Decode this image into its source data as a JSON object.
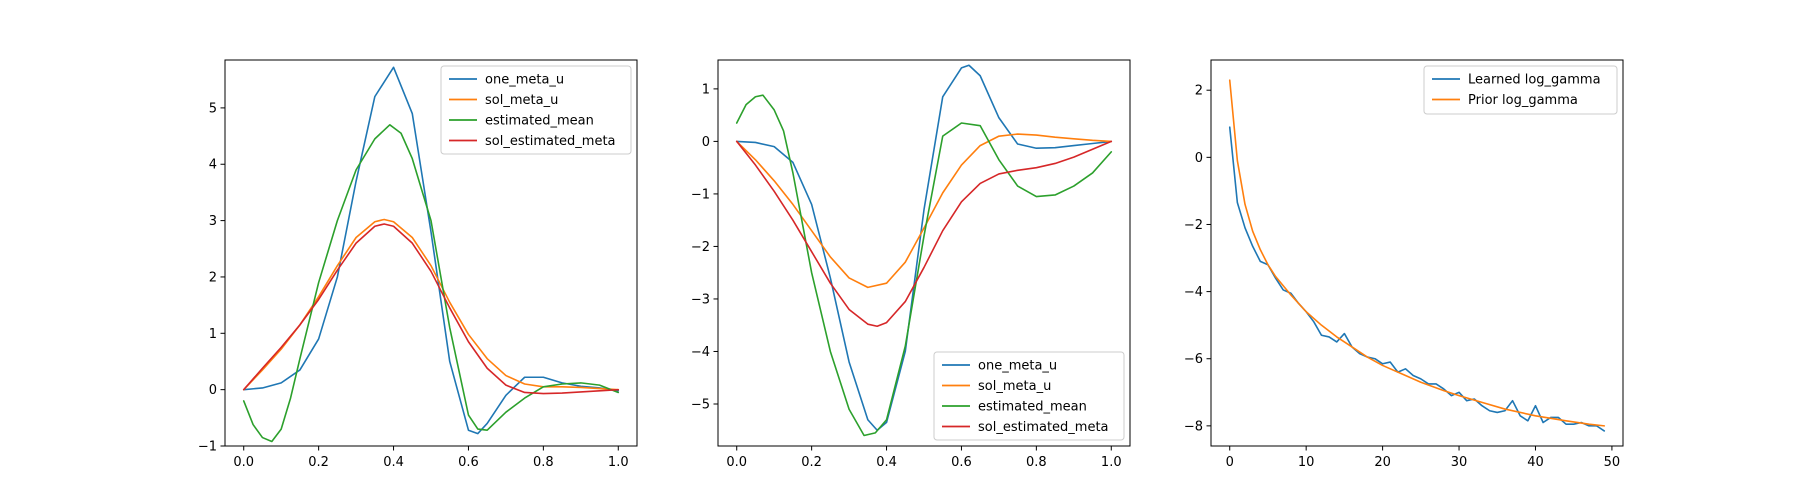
{
  "colors": {
    "blue": "#1f77b4",
    "orange": "#ff7f0e",
    "green": "#2ca02c",
    "red": "#d62728"
  },
  "chart_data": [
    {
      "type": "line",
      "title": "",
      "xlabel": "",
      "ylabel": "",
      "xlim": [
        -0.05,
        1.05
      ],
      "ylim": [
        -1.0,
        5.85
      ],
      "xticks": [
        0.0,
        0.2,
        0.4,
        0.6,
        0.8,
        1.0
      ],
      "xtick_labels": [
        "0.0",
        "0.2",
        "0.4",
        "0.6",
        "0.8",
        "1.0"
      ],
      "yticks": [
        -1,
        0,
        1,
        2,
        3,
        4,
        5
      ],
      "ytick_labels": [
        "−1",
        "0",
        "1",
        "2",
        "3",
        "4",
        "5"
      ],
      "grid": false,
      "legend": "top-right",
      "series": [
        {
          "name": "one_meta_u",
          "color": "#1f77b4",
          "x": [
            0,
            0.05,
            0.1,
            0.15,
            0.2,
            0.25,
            0.3,
            0.35,
            0.4,
            0.45,
            0.5,
            0.55,
            0.6,
            0.625,
            0.65,
            0.7,
            0.75,
            0.8,
            0.85,
            0.9,
            0.95,
            1.0
          ],
          "y": [
            0,
            0.03,
            0.12,
            0.35,
            0.9,
            2.0,
            3.7,
            5.2,
            5.72,
            4.9,
            2.8,
            0.5,
            -0.72,
            -0.78,
            -0.6,
            -0.1,
            0.22,
            0.22,
            0.12,
            0.06,
            0.03,
            -0.02
          ]
        },
        {
          "name": "sol_meta_u",
          "color": "#ff7f0e",
          "x": [
            0,
            0.05,
            0.1,
            0.15,
            0.2,
            0.25,
            0.3,
            0.35,
            0.375,
            0.4,
            0.45,
            0.5,
            0.55,
            0.6,
            0.65,
            0.7,
            0.75,
            0.8,
            0.85,
            0.9,
            0.95,
            1.0
          ],
          "y": [
            0,
            0.35,
            0.72,
            1.15,
            1.65,
            2.2,
            2.7,
            2.98,
            3.02,
            2.98,
            2.7,
            2.2,
            1.55,
            0.98,
            0.55,
            0.25,
            0.1,
            0.05,
            0.05,
            0.04,
            0.02,
            0
          ]
        },
        {
          "name": "estimated_mean",
          "color": "#2ca02c",
          "x": [
            0,
            0.025,
            0.05,
            0.075,
            0.1,
            0.125,
            0.15,
            0.2,
            0.25,
            0.3,
            0.35,
            0.39,
            0.42,
            0.45,
            0.5,
            0.55,
            0.6,
            0.625,
            0.65,
            0.7,
            0.75,
            0.8,
            0.85,
            0.9,
            0.95,
            1.0
          ],
          "y": [
            -0.2,
            -0.62,
            -0.85,
            -0.92,
            -0.7,
            -0.15,
            0.55,
            1.9,
            3.0,
            3.9,
            4.45,
            4.7,
            4.55,
            4.1,
            3.0,
            1.1,
            -0.45,
            -0.7,
            -0.72,
            -0.4,
            -0.15,
            0.05,
            0.1,
            0.12,
            0.08,
            -0.05
          ]
        },
        {
          "name": "sol_estimated_meta",
          "color": "#d62728",
          "x": [
            0,
            0.05,
            0.1,
            0.15,
            0.2,
            0.25,
            0.3,
            0.35,
            0.375,
            0.4,
            0.45,
            0.5,
            0.55,
            0.6,
            0.65,
            0.7,
            0.75,
            0.8,
            0.85,
            0.9,
            0.95,
            1.0
          ],
          "y": [
            0,
            0.38,
            0.75,
            1.15,
            1.6,
            2.12,
            2.6,
            2.9,
            2.94,
            2.9,
            2.6,
            2.1,
            1.45,
            0.85,
            0.38,
            0.08,
            -0.05,
            -0.07,
            -0.06,
            -0.04,
            -0.02,
            0
          ]
        }
      ]
    },
    {
      "type": "line",
      "title": "",
      "xlabel": "",
      "ylabel": "",
      "xlim": [
        -0.05,
        1.05
      ],
      "ylim": [
        -5.8,
        1.55
      ],
      "xticks": [
        0.0,
        0.2,
        0.4,
        0.6,
        0.8,
        1.0
      ],
      "xtick_labels": [
        "0.0",
        "0.2",
        "0.4",
        "0.6",
        "0.8",
        "1.0"
      ],
      "yticks": [
        -5,
        -4,
        -3,
        -2,
        -1,
        0,
        1
      ],
      "ytick_labels": [
        "−5",
        "−4",
        "−3",
        "−2",
        "−1",
        "0",
        "1"
      ],
      "grid": false,
      "legend": "bottom-right",
      "series": [
        {
          "name": "one_meta_u",
          "color": "#1f77b4",
          "x": [
            0,
            0.05,
            0.1,
            0.15,
            0.2,
            0.25,
            0.3,
            0.35,
            0.375,
            0.4,
            0.45,
            0.5,
            0.55,
            0.6,
            0.62,
            0.65,
            0.7,
            0.75,
            0.8,
            0.85,
            0.9,
            0.95,
            1.0
          ],
          "y": [
            0,
            -0.02,
            -0.1,
            -0.4,
            -1.2,
            -2.6,
            -4.2,
            -5.3,
            -5.5,
            -5.35,
            -4.0,
            -1.3,
            0.85,
            1.4,
            1.45,
            1.25,
            0.45,
            -0.05,
            -0.13,
            -0.12,
            -0.08,
            -0.04,
            0
          ]
        },
        {
          "name": "sol_meta_u",
          "color": "#ff7f0e",
          "x": [
            0,
            0.05,
            0.1,
            0.15,
            0.2,
            0.25,
            0.3,
            0.35,
            0.4,
            0.45,
            0.5,
            0.55,
            0.6,
            0.65,
            0.7,
            0.75,
            0.8,
            0.85,
            0.9,
            0.95,
            1.0
          ],
          "y": [
            0,
            -0.35,
            -0.75,
            -1.2,
            -1.7,
            -2.2,
            -2.6,
            -2.78,
            -2.7,
            -2.3,
            -1.65,
            -0.98,
            -0.45,
            -0.08,
            0.1,
            0.14,
            0.12,
            0.08,
            0.05,
            0.02,
            0
          ]
        },
        {
          "name": "estimated_mean",
          "color": "#2ca02c",
          "x": [
            0,
            0.025,
            0.05,
            0.07,
            0.1,
            0.125,
            0.15,
            0.2,
            0.25,
            0.3,
            0.34,
            0.37,
            0.4,
            0.45,
            0.5,
            0.55,
            0.6,
            0.65,
            0.7,
            0.75,
            0.8,
            0.85,
            0.9,
            0.95,
            1.0
          ],
          "y": [
            0.35,
            0.7,
            0.85,
            0.88,
            0.6,
            0.2,
            -0.6,
            -2.5,
            -4.0,
            -5.1,
            -5.6,
            -5.55,
            -5.3,
            -3.9,
            -1.8,
            0.1,
            0.35,
            0.3,
            -0.35,
            -0.85,
            -1.05,
            -1.02,
            -0.85,
            -0.6,
            -0.2
          ]
        },
        {
          "name": "sol_estimated_meta",
          "color": "#d62728",
          "x": [
            0,
            0.05,
            0.1,
            0.15,
            0.2,
            0.25,
            0.3,
            0.35,
            0.375,
            0.4,
            0.45,
            0.5,
            0.55,
            0.6,
            0.65,
            0.7,
            0.75,
            0.8,
            0.85,
            0.9,
            0.95,
            1.0
          ],
          "y": [
            0,
            -0.45,
            -0.95,
            -1.5,
            -2.1,
            -2.7,
            -3.2,
            -3.48,
            -3.52,
            -3.45,
            -3.05,
            -2.4,
            -1.7,
            -1.15,
            -0.8,
            -0.62,
            -0.55,
            -0.5,
            -0.42,
            -0.3,
            -0.15,
            0
          ]
        }
      ]
    },
    {
      "type": "line",
      "title": "",
      "xlabel": "",
      "ylabel": "",
      "xlim": [
        -2.45,
        51.45
      ],
      "ylim": [
        -8.6,
        2.9
      ],
      "xticks": [
        0,
        10,
        20,
        30,
        40,
        50
      ],
      "xtick_labels": [
        "0",
        "10",
        "20",
        "30",
        "40",
        "50"
      ],
      "yticks": [
        -8,
        -6,
        -4,
        -2,
        0,
        2
      ],
      "ytick_labels": [
        "−8",
        "−6",
        "−4",
        "−2",
        "0",
        "2"
      ],
      "grid": false,
      "legend": "top-right",
      "series": [
        {
          "name": "Learned log_gamma",
          "color": "#1f77b4",
          "x": [
            0,
            1,
            2,
            3,
            4,
            5,
            6,
            7,
            8,
            9,
            10,
            11,
            12,
            13,
            14,
            15,
            16,
            17,
            18,
            19,
            20,
            21,
            22,
            23,
            24,
            25,
            26,
            27,
            28,
            29,
            30,
            31,
            32,
            33,
            34,
            35,
            36,
            37,
            38,
            39,
            40,
            41,
            42,
            43,
            44,
            45,
            46,
            47,
            48,
            49
          ],
          "y": [
            0.9,
            -1.35,
            -2.1,
            -2.65,
            -3.1,
            -3.2,
            -3.6,
            -3.95,
            -4.05,
            -4.35,
            -4.6,
            -4.9,
            -5.3,
            -5.35,
            -5.5,
            -5.25,
            -5.65,
            -5.85,
            -5.95,
            -6.0,
            -6.15,
            -6.1,
            -6.4,
            -6.3,
            -6.5,
            -6.6,
            -6.75,
            -6.75,
            -6.9,
            -7.1,
            -7.0,
            -7.25,
            -7.2,
            -7.4,
            -7.55,
            -7.6,
            -7.55,
            -7.25,
            -7.7,
            -7.85,
            -7.4,
            -7.9,
            -7.75,
            -7.75,
            -7.95,
            -7.95,
            -7.9,
            -8.0,
            -8.0,
            -8.15
          ]
        },
        {
          "name": "Prior log_gamma",
          "color": "#ff7f0e",
          "x": [
            0,
            1,
            2,
            3,
            4,
            5,
            6,
            8,
            10,
            12,
            14,
            16,
            18,
            20,
            22,
            25,
            28,
            30,
            33,
            36,
            40,
            44,
            47,
            49
          ],
          "y": [
            2.3,
            -0.1,
            -1.4,
            -2.2,
            -2.75,
            -3.2,
            -3.55,
            -4.1,
            -4.6,
            -5.0,
            -5.35,
            -5.65,
            -5.95,
            -6.2,
            -6.4,
            -6.7,
            -6.95,
            -7.1,
            -7.3,
            -7.5,
            -7.7,
            -7.85,
            -7.95,
            -8.0
          ]
        }
      ]
    }
  ]
}
